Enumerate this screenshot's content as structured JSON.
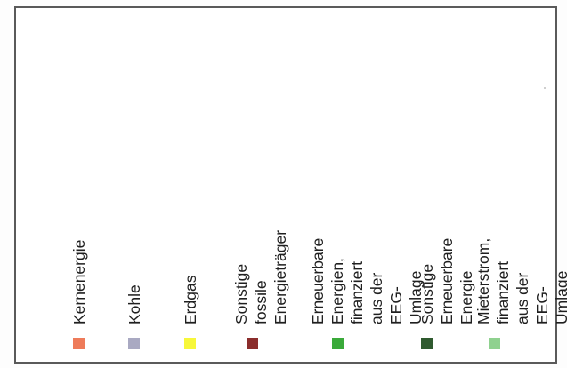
{
  "legend": {
    "entries": [
      {
        "label": "Kernenergie",
        "color": "#ee7b5a"
      },
      {
        "label": "Kohle",
        "color": "#a9a9c2"
      },
      {
        "label": "Erdgas",
        "color": "#f7f73a"
      },
      {
        "label": "Sonstige fossile\nEnergieträger",
        "color": "#8b2d2c"
      },
      {
        "label": "Erneuerbare Energien,\nfinanziert aus der\nEEG-Umlage",
        "color": "#3aaa3a"
      },
      {
        "label": "Sonstige Erneuerbare Energie",
        "color": "#2f5a2f"
      },
      {
        "label": "Mieterstrom, finanziert aus der\nEEG-Umlage",
        "color": "#8fd18f"
      }
    ]
  }
}
